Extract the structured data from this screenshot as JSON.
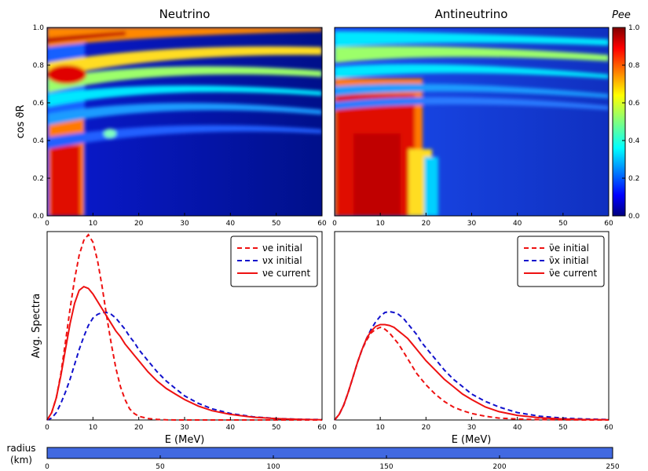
{
  "colors": {
    "nu_e_initial": "#ee1111",
    "nu_x_initial": "#1111cc",
    "nu_e_current": "#ee1111",
    "radius_bar": "#4169e1"
  },
  "chart_data": [
    {
      "type": "heatmap",
      "title": "Neutrino",
      "xlabel": "",
      "ylabel": "cos ϑR",
      "xlim": [
        0,
        60
      ],
      "ylim": [
        0,
        1
      ],
      "xticks": [
        0,
        10,
        20,
        30,
        40,
        50,
        60
      ],
      "yticks": [
        0.0,
        0.2,
        0.4,
        0.6,
        0.8,
        1.0
      ],
      "colormap": "jet"
    },
    {
      "type": "heatmap",
      "title": "Antineutrino",
      "xlabel": "",
      "ylabel": "",
      "xlim": [
        0,
        60
      ],
      "ylim": [
        0,
        1
      ],
      "xticks": [
        0,
        10,
        20,
        30,
        40,
        50,
        60
      ],
      "colormap": "jet",
      "colorbar": {
        "label": "Pee",
        "range": [
          0,
          1
        ],
        "ticks": [
          0.0,
          0.2,
          0.4,
          0.6,
          0.8,
          1.0
        ]
      }
    },
    {
      "type": "line",
      "xlabel": "E (MeV)",
      "ylabel": "Avg. Spectra",
      "xlim": [
        0,
        60
      ],
      "xticks": [
        0,
        10,
        20,
        30,
        40,
        50,
        60
      ],
      "legend_position": "top-right",
      "x": [
        0,
        1,
        2,
        3,
        4,
        5,
        6,
        7,
        8,
        9,
        10,
        11,
        12,
        13,
        14,
        15,
        16,
        17,
        18,
        19,
        20,
        22,
        24,
        26,
        28,
        30,
        33,
        36,
        40,
        45,
        50,
        55,
        60
      ],
      "series": [
        {
          "name": "νe initial",
          "style": "dashed",
          "values": [
            0,
            0.04,
            0.12,
            0.25,
            0.42,
            0.6,
            0.76,
            0.89,
            0.97,
            1.0,
            0.96,
            0.86,
            0.72,
            0.56,
            0.41,
            0.28,
            0.18,
            0.11,
            0.06,
            0.035,
            0.02,
            0.008,
            0.003,
            0.001,
            0,
            0,
            0,
            0,
            0,
            0,
            0,
            0,
            0
          ]
        },
        {
          "name": "νx initial",
          "style": "dashed",
          "values": [
            0,
            0.01,
            0.04,
            0.09,
            0.15,
            0.22,
            0.3,
            0.38,
            0.45,
            0.51,
            0.55,
            0.57,
            0.58,
            0.58,
            0.57,
            0.55,
            0.52,
            0.49,
            0.45,
            0.42,
            0.38,
            0.32,
            0.26,
            0.21,
            0.17,
            0.13,
            0.09,
            0.06,
            0.035,
            0.017,
            0.008,
            0.004,
            0.002
          ]
        },
        {
          "name": "νe current",
          "style": "solid",
          "values": [
            0,
            0.04,
            0.12,
            0.24,
            0.38,
            0.52,
            0.63,
            0.7,
            0.72,
            0.71,
            0.68,
            0.64,
            0.6,
            0.56,
            0.52,
            0.48,
            0.45,
            0.41,
            0.38,
            0.35,
            0.32,
            0.26,
            0.21,
            0.17,
            0.14,
            0.11,
            0.075,
            0.05,
            0.03,
            0.015,
            0.007,
            0.003,
            0.001
          ]
        }
      ]
    },
    {
      "type": "line",
      "xlabel": "E (MeV)",
      "ylabel": "",
      "xlim": [
        0,
        60
      ],
      "xticks": [
        0,
        10,
        20,
        30,
        40,
        50,
        60
      ],
      "legend_position": "top-right",
      "x": [
        0,
        1,
        2,
        3,
        4,
        5,
        6,
        7,
        8,
        9,
        10,
        11,
        12,
        13,
        14,
        15,
        16,
        17,
        18,
        19,
        20,
        22,
        24,
        26,
        28,
        30,
        33,
        36,
        40,
        45,
        50,
        55,
        60
      ],
      "series": [
        {
          "name": "ν̄e initial",
          "style": "dashed",
          "values": [
            0,
            0.03,
            0.08,
            0.15,
            0.23,
            0.31,
            0.38,
            0.43,
            0.47,
            0.49,
            0.5,
            0.49,
            0.47,
            0.44,
            0.41,
            0.37,
            0.33,
            0.29,
            0.25,
            0.22,
            0.19,
            0.14,
            0.1,
            0.07,
            0.05,
            0.035,
            0.02,
            0.01,
            0.005,
            0.002,
            0.001,
            0,
            0
          ]
        },
        {
          "name": "ν̄x initial",
          "style": "dashed",
          "values": [
            0,
            0.03,
            0.08,
            0.15,
            0.23,
            0.31,
            0.38,
            0.44,
            0.49,
            0.53,
            0.56,
            0.58,
            0.585,
            0.58,
            0.57,
            0.55,
            0.52,
            0.49,
            0.46,
            0.42,
            0.39,
            0.33,
            0.27,
            0.22,
            0.18,
            0.14,
            0.1,
            0.07,
            0.04,
            0.02,
            0.01,
            0.005,
            0.002
          ]
        },
        {
          "name": "ν̄e current",
          "style": "solid",
          "values": [
            0,
            0.03,
            0.08,
            0.15,
            0.23,
            0.31,
            0.38,
            0.44,
            0.48,
            0.505,
            0.515,
            0.515,
            0.51,
            0.5,
            0.48,
            0.46,
            0.44,
            0.41,
            0.38,
            0.35,
            0.32,
            0.27,
            0.22,
            0.18,
            0.14,
            0.11,
            0.07,
            0.045,
            0.025,
            0.012,
            0.005,
            0.002,
            0.001
          ]
        }
      ]
    },
    {
      "type": "bar",
      "label": "radius\n(km)",
      "xlim": [
        0,
        250
      ],
      "xticks": [
        0,
        50,
        100,
        150,
        200,
        250
      ],
      "value": 250
    }
  ]
}
